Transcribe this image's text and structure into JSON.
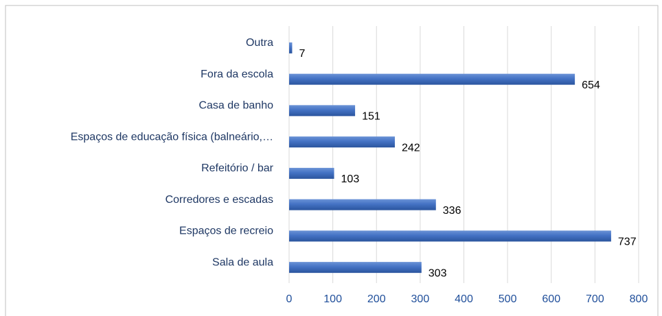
{
  "chart_data": {
    "type": "bar",
    "orientation": "horizontal",
    "categories": [
      "Outra",
      "Fora da escola",
      "Casa de banho",
      "Espaços de educação física (balneário,…",
      "Refeitório / bar",
      "Corredores e escadas",
      "Espaços de recreio",
      "Sala de aula"
    ],
    "values": [
      7,
      654,
      151,
      242,
      103,
      336,
      737,
      303
    ],
    "color": "#4472c4",
    "xlim": [
      0,
      800
    ],
    "xticks": [
      0,
      100,
      200,
      300,
      400,
      500,
      600,
      700,
      800
    ],
    "grid": true
  }
}
